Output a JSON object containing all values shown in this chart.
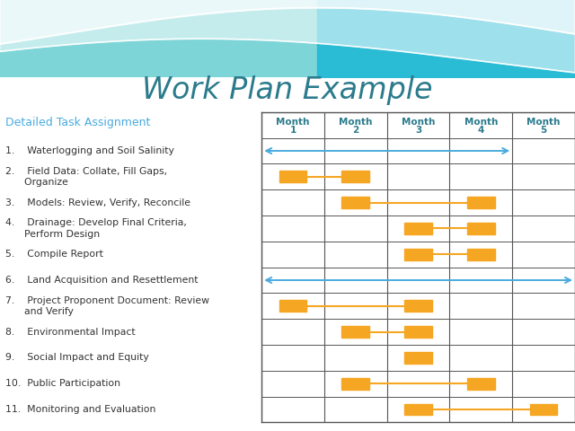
{
  "title": "Work Plan Example",
  "title_color": "#2B7B8C",
  "title_fontsize": 24,
  "subtitle": "Detailed Task Assignment",
  "subtitle_color": "#4AABE0",
  "subtitle_fontsize": 9,
  "tasks": [
    "1.    Waterlogging and Soil Salinity",
    "2.    Field Data: Collate, Fill Gaps,\n      Organize",
    "3.    Models: Review, Verify, Reconcile",
    "4.    Drainage: Develop Final Criteria,\n      Perform Design",
    "5.    Compile Report",
    "6.    Land Acquisition and Resettlement",
    "7.    Project Proponent Document: Review\n      and Verify",
    "8.    Environmental Impact",
    "9.    Social Impact and Equity",
    "10.  Public Participation",
    "11.  Monitoring and Evaluation"
  ],
  "months": [
    "Month\n1",
    "Month\n2",
    "Month\n3",
    "Month\n4",
    "Month\n5"
  ],
  "n_months": 5,
  "n_rows": 12,
  "orange_color": "#F5A623",
  "blue_arrow_color": "#4AABE0",
  "grid_color": "#555555",
  "bg_color": "#FFFFFF",
  "task_bars": [
    {
      "task_row": 2,
      "start": 1,
      "end": 2
    },
    {
      "task_row": 3,
      "start": 2,
      "end": 4
    },
    {
      "task_row": 4,
      "start": 3,
      "end": 4
    },
    {
      "task_row": 5,
      "start": 3,
      "end": 4
    },
    {
      "task_row": 7,
      "start": 1,
      "end": 3
    },
    {
      "task_row": 8,
      "start": 2,
      "end": 3
    },
    {
      "task_row": 9,
      "start": 3,
      "end": 3
    },
    {
      "task_row": 10,
      "start": 2,
      "end": 4
    },
    {
      "task_row": 11,
      "start": 3,
      "end": 5
    }
  ],
  "blue_arrows": [
    {
      "task_row": 1,
      "start": 0,
      "end": 4
    },
    {
      "task_row": 6,
      "start": 0,
      "end": 5
    }
  ]
}
